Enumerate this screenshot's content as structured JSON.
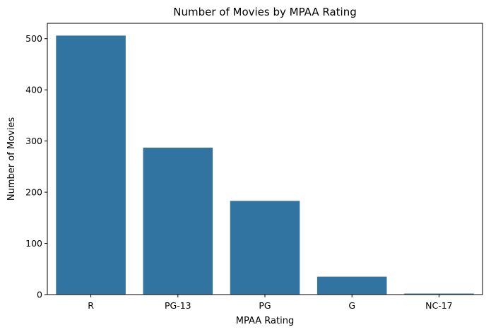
{
  "chart_data": {
    "type": "bar",
    "title": "Number of Movies by MPAA Rating",
    "xlabel": "MPAA Rating",
    "ylabel": "Number of Movies",
    "categories": [
      "R",
      "PG-13",
      "PG",
      "G",
      "NC-17"
    ],
    "values": [
      506,
      287,
      183,
      35,
      2
    ],
    "ylim": [
      0,
      530
    ],
    "yticks": [
      0,
      100,
      200,
      300,
      400,
      500
    ],
    "grid": false,
    "bar_color": "#3274a1"
  }
}
